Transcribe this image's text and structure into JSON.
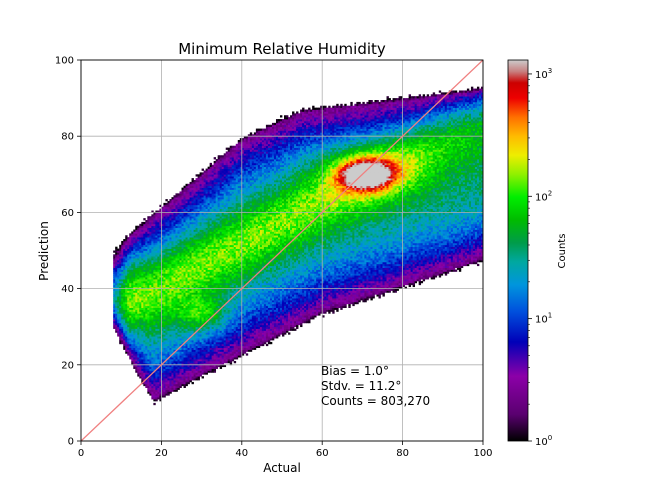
{
  "chart_data": {
    "type": "heatmap",
    "title": "Minimum Relative Humidity",
    "xlabel": "Actual",
    "ylabel": "Prediction",
    "xlim": [
      0,
      100
    ],
    "ylim": [
      0,
      100
    ],
    "x_ticks": [
      0,
      20,
      40,
      60,
      80,
      100
    ],
    "y_ticks": [
      0,
      20,
      40,
      60,
      80,
      100
    ],
    "x_tick_labels": [
      "0",
      "20",
      "40",
      "60",
      "80",
      "100"
    ],
    "y_tick_labels": [
      "0",
      "20",
      "40",
      "60",
      "80",
      "100"
    ],
    "grid": true,
    "reference_line": {
      "x": [
        0,
        100
      ],
      "y": [
        0,
        100
      ],
      "color": "#f08080"
    },
    "colorbar": {
      "label": "Counts",
      "scale": "log",
      "range": [
        1,
        1300
      ],
      "tick_values": [
        1,
        10,
        100,
        1000
      ],
      "tick_labels": [
        "10",
        "10",
        "10",
        "10"
      ],
      "tick_exponents": [
        "0",
        "1",
        "2",
        "3"
      ]
    },
    "annotation": {
      "bias": "Bias = 1.0°",
      "stdv": "Stdv. = 11.2°",
      "counts": "Counts = 803,270"
    },
    "density_peaks": [
      {
        "x": 71,
        "y": 70,
        "count": 1200
      },
      {
        "x": 30,
        "y": 33,
        "count": 160
      }
    ]
  }
}
